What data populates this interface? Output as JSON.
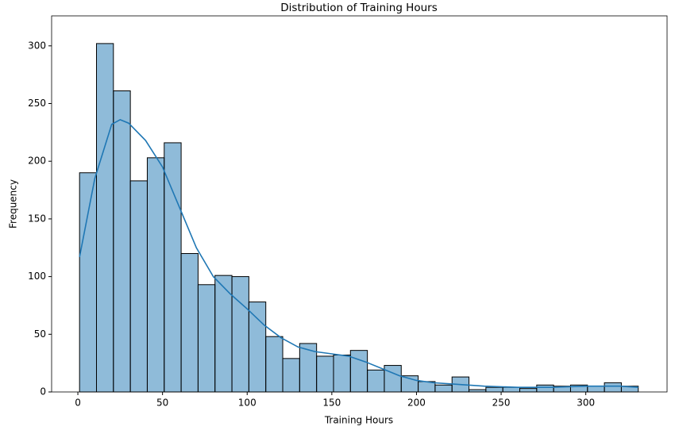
{
  "chart_data": {
    "type": "histogram",
    "title": "Distribution of Training Hours",
    "x_label": "Training Hours",
    "y_label": "Frequency",
    "bins": [
      1,
      11,
      21,
      31,
      41,
      51,
      61,
      71,
      81,
      91,
      101,
      111,
      121,
      131,
      141,
      151,
      161,
      171,
      181,
      191,
      201,
      211,
      221,
      231,
      241,
      251,
      261,
      271,
      281,
      291,
      301,
      311,
      321,
      331
    ],
    "counts": [
      190,
      302,
      261,
      183,
      203,
      216,
      120,
      93,
      101,
      100,
      78,
      48,
      29,
      42,
      31,
      32,
      36,
      19,
      23,
      14,
      9,
      6,
      13,
      2,
      4,
      4,
      3,
      6,
      5,
      6,
      5,
      8,
      5
    ],
    "color": "#1f77b4",
    "edgecolor": "#000000",
    "kde": {
      "color": "#1f77b4",
      "x": [
        1,
        10,
        20,
        25,
        30,
        40,
        50,
        60,
        70,
        80,
        90,
        100,
        110,
        120,
        130,
        140,
        150,
        160,
        170,
        180,
        190,
        200,
        210,
        220,
        240,
        260,
        280,
        300,
        320,
        331
      ],
      "y": [
        117,
        185,
        232,
        236,
        233,
        218,
        195,
        160,
        125,
        100,
        85,
        72,
        58,
        47,
        39,
        35,
        33,
        31,
        26,
        20,
        14,
        10,
        8,
        7,
        5,
        4,
        4,
        5,
        5,
        4
      ]
    },
    "xlim": [
      -15.5,
      348
    ],
    "ylim": [
      0,
      326
    ],
    "xticks": [
      0,
      50,
      100,
      150,
      200,
      250,
      300
    ],
    "yticks": [
      0,
      50,
      100,
      150,
      200,
      250,
      300
    ]
  }
}
